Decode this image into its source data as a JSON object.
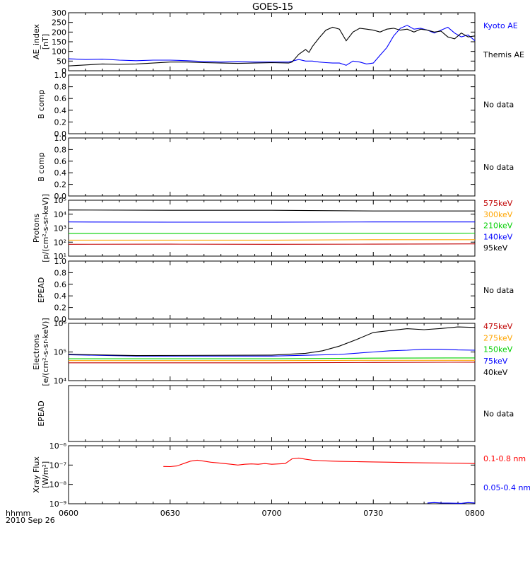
{
  "title": "GOES-15",
  "x_axis": {
    "ticks": [
      "0600",
      "0630",
      "0700",
      "0730",
      "0800"
    ],
    "range_minutes": [
      0,
      120
    ],
    "label_top": "hhmm",
    "label_bottom": "2010 Sep 26"
  },
  "chart_data": [
    {
      "id": "ae",
      "type": "line",
      "ylabel": [
        "AE_index",
        "[nT]"
      ],
      "ylim": [
        0,
        300
      ],
      "yticks": [
        {
          "v": 0,
          "t": "0"
        },
        {
          "v": 50,
          "t": "50"
        },
        {
          "v": 100,
          "t": "100"
        },
        {
          "v": 150,
          "t": "150"
        },
        {
          "v": 200,
          "t": "200"
        },
        {
          "v": 250,
          "t": "250"
        },
        {
          "v": 300,
          "t": "300"
        }
      ],
      "series": [
        {
          "name": "Kyoto AE",
          "color": "#0000ff",
          "x": [
            0,
            5,
            10,
            15,
            20,
            25,
            30,
            35,
            40,
            45,
            50,
            55,
            60,
            65,
            68,
            70,
            72,
            74,
            76,
            78,
            80,
            82,
            84,
            86,
            88,
            90,
            92,
            94,
            96,
            98,
            100,
            102,
            104,
            106,
            108,
            110,
            112,
            114,
            116,
            118,
            120
          ],
          "y": [
            62,
            58,
            60,
            55,
            52,
            55,
            55,
            52,
            48,
            45,
            47,
            45,
            45,
            45,
            58,
            50,
            50,
            45,
            42,
            40,
            40,
            28,
            50,
            45,
            35,
            40,
            80,
            120,
            180,
            220,
            235,
            215,
            220,
            210,
            195,
            210,
            225,
            195,
            175,
            185,
            155
          ]
        },
        {
          "name": "Themis AE",
          "color": "#000000",
          "x": [
            0,
            5,
            10,
            15,
            20,
            25,
            30,
            35,
            40,
            45,
            50,
            55,
            60,
            65,
            66,
            68,
            70,
            71,
            72,
            74,
            76,
            78,
            80,
            82,
            84,
            86,
            88,
            90,
            92,
            94,
            96,
            98,
            100,
            102,
            104,
            106,
            108,
            110,
            112,
            114,
            116,
            118,
            120
          ],
          "y": [
            25,
            30,
            35,
            33,
            35,
            40,
            45,
            45,
            42,
            40,
            38,
            40,
            42,
            40,
            45,
            85,
            110,
            95,
            125,
            170,
            210,
            225,
            215,
            155,
            200,
            220,
            215,
            210,
            200,
            215,
            220,
            210,
            215,
            200,
            215,
            210,
            200,
            205,
            175,
            165,
            195,
            175,
            180
          ]
        }
      ]
    },
    {
      "id": "bcomp1",
      "type": "line",
      "ylabel": [
        "B comp"
      ],
      "ylim": [
        0,
        1
      ],
      "yticks": [
        {
          "v": 0,
          "t": "0.0"
        },
        {
          "v": 0.2,
          "t": "0.2"
        },
        {
          "v": 0.4,
          "t": "0.4"
        },
        {
          "v": 0.6,
          "t": "0.6"
        },
        {
          "v": 0.8,
          "t": "0.8"
        },
        {
          "v": 1,
          "t": "1.0"
        }
      ],
      "no_data": "No data",
      "series": []
    },
    {
      "id": "bcomp2",
      "type": "line",
      "ylabel": [
        "B comp"
      ],
      "ylim": [
        0,
        1
      ],
      "yticks": [
        {
          "v": 0,
          "t": "0.0"
        },
        {
          "v": 0.2,
          "t": "0.2"
        },
        {
          "v": 0.4,
          "t": "0.4"
        },
        {
          "v": 0.6,
          "t": "0.6"
        },
        {
          "v": 0.8,
          "t": "0.8"
        },
        {
          "v": 1,
          "t": "1.0"
        }
      ],
      "no_data": "No data",
      "series": []
    },
    {
      "id": "protons",
      "type": "line",
      "scale": "log",
      "ylabel": [
        "Protons",
        "[p/(cm²-s-sr-keV)]"
      ],
      "ylim": [
        10,
        100000
      ],
      "yticks": [
        {
          "v": 10,
          "t": "10¹"
        },
        {
          "v": 100,
          "t": "10²"
        },
        {
          "v": 1000,
          "t": "10³"
        },
        {
          "v": 10000,
          "t": "10⁴"
        },
        {
          "v": 100000,
          "t": "10⁵"
        }
      ],
      "series": [
        {
          "name": "575keV",
          "color": "#c00000",
          "x": [
            0,
            30,
            60,
            90,
            120
          ],
          "y": [
            70,
            72,
            70,
            72,
            75
          ]
        },
        {
          "name": "300keV",
          "color": "#ffa500",
          "x": [
            0,
            30,
            60,
            90,
            120
          ],
          "y": [
            140,
            140,
            140,
            150,
            150
          ]
        },
        {
          "name": "210keV",
          "color": "#00d000",
          "x": [
            0,
            30,
            60,
            90,
            120
          ],
          "y": [
            420,
            420,
            420,
            430,
            440
          ]
        },
        {
          "name": "140keV",
          "color": "#0000ff",
          "x": [
            0,
            30,
            60,
            90,
            120
          ],
          "y": [
            2800,
            2700,
            2700,
            2800,
            2800
          ]
        },
        {
          "name": "95keV",
          "color": "#000000",
          "x": [
            0,
            30,
            60,
            90,
            120
          ],
          "y": [
            20000,
            19000,
            19000,
            17000,
            17000
          ]
        }
      ]
    },
    {
      "id": "epead1",
      "type": "line",
      "ylabel": [
        "EPEAD"
      ],
      "ylim": [
        0,
        1
      ],
      "yticks": [
        {
          "v": 0,
          "t": "0.0"
        },
        {
          "v": 0.2,
          "t": "0.2"
        },
        {
          "v": 0.4,
          "t": "0.4"
        },
        {
          "v": 0.6,
          "t": "0.6"
        },
        {
          "v": 0.8,
          "t": "0.8"
        },
        {
          "v": 1,
          "t": "1.0"
        }
      ],
      "no_data": "No data",
      "series": []
    },
    {
      "id": "electrons",
      "type": "line",
      "scale": "log",
      "ylabel": [
        "Electrons",
        "[e/(cm²-s-sr-keV)]"
      ],
      "ylim": [
        10000,
        1000000
      ],
      "yticks": [
        {
          "v": 10000,
          "t": "10⁴"
        },
        {
          "v": 100000,
          "t": "10⁵"
        },
        {
          "v": 1000000,
          "t": "10⁶"
        }
      ],
      "series": [
        {
          "name": "475keV",
          "color": "#c00000",
          "x": [
            0,
            30,
            60,
            90,
            120
          ],
          "y": [
            42000,
            42000,
            42000,
            43000,
            44000
          ]
        },
        {
          "name": "275keV",
          "color": "#ffa500",
          "x": [
            0,
            30,
            60,
            90,
            120
          ],
          "y": [
            50000,
            50000,
            50000,
            51000,
            51000
          ]
        },
        {
          "name": "150keV",
          "color": "#00d000",
          "x": [
            0,
            30,
            60,
            80,
            90,
            120
          ],
          "y": [
            58000,
            58000,
            58000,
            60000,
            61000,
            62000
          ]
        },
        {
          "name": "75keV",
          "color": "#0000ff",
          "x": [
            0,
            20,
            60,
            80,
            90,
            95,
            100,
            105,
            110,
            115,
            120
          ],
          "y": [
            80000,
            72000,
            72000,
            82000,
            100000,
            110000,
            115000,
            125000,
            125000,
            118000,
            115000
          ]
        },
        {
          "name": "40keV",
          "color": "#000000",
          "x": [
            0,
            20,
            60,
            70,
            75,
            80,
            85,
            90,
            95,
            100,
            105,
            110,
            115,
            120
          ],
          "y": [
            83000,
            75000,
            78000,
            90000,
            110000,
            160000,
            270000,
            480000,
            560000,
            650000,
            600000,
            660000,
            750000,
            720000
          ]
        }
      ]
    },
    {
      "id": "epead2",
      "type": "line",
      "ylabel": [
        "EPEAD"
      ],
      "ylim": [
        0,
        1
      ],
      "yticks": [],
      "no_data": "No data",
      "series": []
    },
    {
      "id": "xray",
      "type": "line",
      "scale": "log",
      "ylabel": [
        "Xray Flux",
        "[W/m²]"
      ],
      "ylim": [
        1e-09,
        1e-06
      ],
      "yticks": [
        {
          "v": 1e-09,
          "t": "10⁻⁹"
        },
        {
          "v": 1e-08,
          "t": "10⁻⁸"
        },
        {
          "v": 1e-07,
          "t": "10⁻⁷"
        },
        {
          "v": 1e-06,
          "t": "10⁻⁶"
        }
      ],
      "series": [
        {
          "name": "0.1-0.8 nm",
          "color": "#ff0000",
          "x": [
            28,
            30,
            32,
            34,
            36,
            38,
            40,
            42,
            44,
            46,
            48,
            50,
            52,
            54,
            56,
            58,
            60,
            62,
            64,
            66,
            68,
            70,
            72,
            74,
            76,
            78,
            80,
            85,
            90,
            95,
            100,
            105,
            110,
            115,
            120
          ],
          "y": [
            8.5e-08,
            8.3e-08,
            9e-08,
            1.2e-07,
            1.6e-07,
            1.8e-07,
            1.6e-07,
            1.4e-07,
            1.3e-07,
            1.2e-07,
            1.1e-07,
            1e-07,
            1.1e-07,
            1.15e-07,
            1.1e-07,
            1.2e-07,
            1.1e-07,
            1.15e-07,
            1.2e-07,
            2.1e-07,
            2.3e-07,
            2e-07,
            1.8e-07,
            1.7e-07,
            1.65e-07,
            1.6e-07,
            1.55e-07,
            1.5e-07,
            1.45e-07,
            1.4e-07,
            1.35e-07,
            1.3e-07,
            1.28e-07,
            1.25e-07,
            1.2e-07
          ]
        },
        {
          "name": "0.05-0.4 nm",
          "color": "#0000ff",
          "x": [
            106,
            108,
            110,
            116,
            118,
            120
          ],
          "y": [
            1.1e-09,
            1.15e-09,
            1.1e-09,
            1.05e-09,
            1.15e-09,
            1.1e-09
          ]
        }
      ]
    }
  ]
}
